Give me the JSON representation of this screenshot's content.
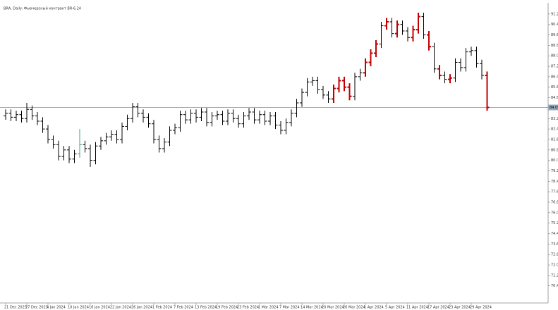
{
  "chart_data": {
    "type": "ohlc",
    "title": "BRA, Daily: Фьючерсный контракт BR-6.24",
    "categories": [
      "21 Dec 2023",
      null,
      null,
      null,
      "27 Dec 2023",
      null,
      null,
      null,
      "4 Jan 2024",
      null,
      null,
      null,
      "10 Jan 2024",
      null,
      null,
      null,
      "16 Jan 2024",
      null,
      null,
      null,
      "22 Jan 2024",
      null,
      null,
      null,
      "26 Jan 2024",
      null,
      null,
      null,
      "1 Feb 2024",
      null,
      null,
      null,
      "7 Feb 2024",
      null,
      null,
      null,
      "13 Feb 2024",
      null,
      null,
      null,
      "19 Feb 2024",
      null,
      null,
      null,
      "23 Feb 2024",
      null,
      null,
      null,
      "1 Mar 2024",
      null,
      null,
      null,
      "7 Mar 2024",
      null,
      null,
      null,
      "14 Mar 2024",
      null,
      null,
      null,
      "20 Mar 2024",
      null,
      null,
      null,
      "26 Mar 2024",
      null,
      null,
      null,
      "1 Apr 2024",
      null,
      null,
      null,
      "5 Apr 2024",
      null,
      null,
      null,
      "11 Apr 2024",
      null,
      null,
      null,
      "17 Apr 2024",
      null,
      null,
      null,
      "23 Apr 2024",
      null,
      null,
      null,
      "29 Apr 2024",
      null,
      null,
      null
    ],
    "ohlc": [
      [
        83.4,
        83.9,
        83.1,
        83.6
      ],
      [
        83.6,
        83.9,
        83.0,
        83.3
      ],
      [
        83.3,
        83.8,
        83.0,
        83.5
      ],
      [
        83.5,
        83.8,
        82.9,
        83.2
      ],
      [
        83.2,
        84.4,
        82.9,
        83.9
      ],
      [
        83.9,
        84.2,
        83.1,
        83.4
      ],
      [
        83.4,
        83.7,
        82.7,
        83.0
      ],
      [
        83.0,
        83.3,
        82.1,
        82.4
      ],
      [
        82.4,
        82.7,
        81.3,
        81.6
      ],
      [
        81.6,
        81.9,
        80.9,
        81.2
      ],
      [
        81.2,
        81.5,
        80.0,
        80.3
      ],
      [
        80.3,
        81.1,
        80.0,
        80.8
      ],
      [
        80.8,
        81.1,
        79.8,
        80.1
      ],
      [
        80.1,
        80.8,
        79.8,
        80.5
      ],
      [
        80.5,
        82.4,
        80.2,
        81.2
      ],
      [
        81.2,
        81.5,
        80.6,
        80.9
      ],
      [
        80.9,
        81.2,
        79.5,
        80.0
      ],
      [
        80.0,
        81.4,
        79.7,
        81.1
      ],
      [
        81.1,
        81.8,
        80.8,
        81.5
      ],
      [
        81.5,
        82.1,
        81.2,
        81.8
      ],
      [
        81.8,
        82.3,
        81.5,
        82.0
      ],
      [
        82.0,
        82.3,
        81.3,
        81.6
      ],
      [
        81.6,
        82.9,
        81.3,
        82.6
      ],
      [
        82.6,
        83.5,
        82.3,
        83.2
      ],
      [
        83.2,
        84.4,
        82.9,
        84.1
      ],
      [
        84.1,
        84.4,
        83.3,
        83.6
      ],
      [
        83.6,
        83.9,
        82.9,
        83.3
      ],
      [
        83.3,
        83.6,
        82.5,
        82.8
      ],
      [
        82.8,
        83.1,
        81.3,
        81.6
      ],
      [
        81.6,
        81.9,
        80.6,
        80.9
      ],
      [
        80.9,
        81.7,
        80.6,
        81.4
      ],
      [
        81.4,
        82.6,
        81.1,
        82.3
      ],
      [
        82.3,
        82.8,
        82.0,
        82.5
      ],
      [
        82.5,
        83.8,
        82.2,
        83.5
      ],
      [
        83.5,
        83.8,
        82.8,
        83.1
      ],
      [
        83.1,
        83.9,
        82.8,
        83.6
      ],
      [
        83.6,
        83.9,
        82.9,
        83.3
      ],
      [
        83.3,
        84.0,
        83.0,
        83.7
      ],
      [
        83.7,
        84.0,
        82.6,
        82.9
      ],
      [
        82.9,
        83.7,
        82.6,
        83.4
      ],
      [
        83.4,
        83.8,
        83.1,
        83.5
      ],
      [
        83.5,
        83.8,
        82.7,
        83.0
      ],
      [
        83.0,
        83.9,
        82.7,
        83.6
      ],
      [
        83.6,
        83.9,
        82.9,
        83.2
      ],
      [
        83.2,
        83.5,
        82.5,
        82.8
      ],
      [
        82.8,
        83.7,
        82.5,
        83.4
      ],
      [
        83.4,
        84.0,
        83.1,
        83.7
      ],
      [
        83.7,
        84.0,
        82.8,
        83.1
      ],
      [
        83.1,
        83.8,
        82.8,
        83.5
      ],
      [
        83.5,
        83.8,
        82.7,
        83.0
      ],
      [
        83.0,
        83.7,
        82.7,
        83.4
      ],
      [
        83.4,
        83.7,
        82.4,
        82.7
      ],
      [
        82.7,
        83.0,
        82.0,
        82.3
      ],
      [
        82.3,
        83.2,
        82.0,
        82.9
      ],
      [
        82.9,
        83.9,
        82.6,
        83.6
      ],
      [
        83.6,
        84.7,
        83.3,
        84.4
      ],
      [
        84.4,
        85.5,
        84.1,
        85.2
      ],
      [
        85.2,
        86.3,
        84.9,
        86.0
      ],
      [
        86.0,
        86.4,
        85.7,
        86.1
      ],
      [
        86.1,
        86.4,
        85.1,
        85.4
      ],
      [
        85.4,
        85.7,
        84.7,
        85.0
      ],
      [
        85.0,
        85.3,
        84.4,
        84.7
      ],
      [
        84.7,
        85.8,
        84.4,
        85.5
      ],
      [
        85.5,
        86.4,
        85.2,
        86.1
      ],
      [
        86.1,
        86.4,
        85.3,
        85.6
      ],
      [
        85.6,
        85.9,
        84.6,
        84.9
      ],
      [
        84.9,
        86.7,
        84.6,
        86.4
      ],
      [
        86.4,
        87.0,
        86.1,
        86.7
      ],
      [
        86.7,
        87.8,
        86.4,
        87.5
      ],
      [
        87.5,
        88.5,
        87.2,
        88.2
      ],
      [
        88.2,
        89.2,
        87.9,
        88.9
      ],
      [
        88.9,
        90.6,
        88.6,
        90.3
      ],
      [
        90.3,
        90.9,
        90.0,
        90.6
      ],
      [
        90.6,
        90.9,
        89.4,
        89.7
      ],
      [
        89.7,
        90.7,
        89.4,
        90.4
      ],
      [
        90.4,
        90.7,
        89.6,
        89.9
      ],
      [
        89.9,
        90.2,
        89.1,
        89.4
      ],
      [
        89.4,
        90.3,
        89.1,
        90.0
      ],
      [
        90.0,
        91.3,
        89.7,
        91.0
      ],
      [
        91.0,
        91.3,
        89.3,
        89.6
      ],
      [
        89.6,
        89.9,
        88.4,
        88.7
      ],
      [
        88.7,
        89.0,
        86.7,
        87.0
      ],
      [
        87.0,
        87.3,
        86.2,
        86.5
      ],
      [
        86.5,
        86.8,
        85.9,
        86.2
      ],
      [
        86.2,
        86.6,
        85.9,
        86.3
      ],
      [
        86.3,
        87.8,
        86.0,
        87.5
      ],
      [
        87.5,
        87.8,
        86.8,
        87.1
      ],
      [
        87.1,
        88.6,
        86.8,
        88.3
      ],
      [
        88.3,
        88.7,
        88.0,
        88.4
      ],
      [
        88.4,
        88.7,
        87.1,
        87.4
      ],
      [
        87.4,
        87.7,
        86.2,
        86.5
      ],
      [
        86.5,
        86.8,
        83.8,
        84.05
      ]
    ],
    "colors": [
      "#000",
      "#000",
      "#000",
      "#000",
      "#000",
      "#000",
      "#000",
      "#000",
      "#000",
      "#000",
      "#000",
      "#000",
      "#000",
      "#000",
      "#40a080",
      "#000",
      "#000",
      "#000",
      "#000",
      "#000",
      "#000",
      "#000",
      "#000",
      "#000",
      "#000",
      "#000",
      "#000",
      "#000",
      "#000",
      "#000",
      "#000",
      "#000",
      "#000",
      "#000",
      "#000",
      "#000",
      "#000",
      "#000",
      "#000",
      "#000",
      "#000",
      "#000",
      "#000",
      "#000",
      "#000",
      "#000",
      "#000",
      "#000",
      "#000",
      "#000",
      "#000",
      "#000",
      "#000",
      "#000",
      "#000",
      "#000",
      "#000",
      "#000",
      "#000",
      "#000",
      "#000",
      "#000",
      "#c00000",
      "#c00000",
      "#c00000",
      "#c00000",
      "#000",
      "#000",
      "#c00000",
      "#c00000",
      "#c00000",
      "#000",
      "#c00000",
      "#000",
      "#c00000",
      "#000",
      "#000",
      "#c00000",
      "#c00000",
      "#000",
      "#c00000",
      "#000",
      "#c00000",
      "#000",
      "#c00000",
      "#000",
      "#000",
      "#000",
      "#000",
      "#000",
      "#000",
      "#c00000"
    ],
    "last_price": 84.05,
    "ylim": [
      69.2,
      92.0
    ],
    "yticks": [
      {
        "value": 70.4,
        "label": "70.40"
      },
      {
        "value": 71.2,
        "label": "71.20"
      },
      {
        "value": 72.0,
        "label": "72.00"
      },
      {
        "value": 72.8,
        "label": "72.80"
      },
      {
        "value": 73.6,
        "label": "73.60"
      },
      {
        "value": 74.4,
        "label": "74.40"
      },
      {
        "value": 75.2,
        "label": "75.20"
      },
      {
        "value": 76.0,
        "label": "76.00"
      },
      {
        "value": 76.8,
        "label": "76.80"
      },
      {
        "value": 77.6,
        "label": "77.60"
      },
      {
        "value": 78.4,
        "label": "78.40"
      },
      {
        "value": 79.2,
        "label": "79.20"
      },
      {
        "value": 80.0,
        "label": "80.00"
      },
      {
        "value": 80.8,
        "label": "80.80"
      },
      {
        "value": 81.6,
        "label": "81.60"
      },
      {
        "value": 82.4,
        "label": "82.40"
      },
      {
        "value": 83.2,
        "label": "83.20"
      },
      {
        "value": 84.8,
        "label": "84.80"
      },
      {
        "value": 85.6,
        "label": "85.60"
      },
      {
        "value": 86.4,
        "label": "86.40"
      },
      {
        "value": 87.2,
        "label": "87.20"
      },
      {
        "value": 88.0,
        "label": "88.00"
      },
      {
        "value": 88.8,
        "label": "88.80"
      },
      {
        "value": 89.6,
        "label": "89.60"
      },
      {
        "value": 90.4,
        "label": "90.40"
      },
      {
        "value": 91.2,
        "label": "91.20"
      }
    ]
  }
}
